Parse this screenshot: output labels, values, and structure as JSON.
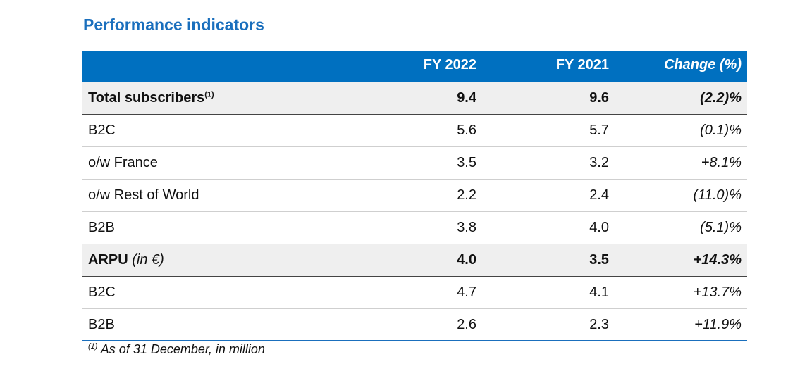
{
  "header": {
    "title": "Performance indicators"
  },
  "table": {
    "columns": [
      "FY 2022",
      "FY 2021",
      "Change (%)"
    ],
    "rows": [
      {
        "label": "Total subscribers",
        "note": "(1)",
        "cells": [
          "9.4",
          "9.6",
          "(2.2)%"
        ],
        "bold": true
      },
      {
        "label": "B2C",
        "cells": [
          "5.6",
          "5.7",
          "(0.1)%"
        ]
      },
      {
        "label": "o/w France",
        "cells": [
          "3.5",
          "3.2",
          "+8.1%"
        ]
      },
      {
        "label": "o/w Rest of World",
        "cells": [
          "2.2",
          "2.4",
          "(11.0)%"
        ]
      },
      {
        "label": "B2B",
        "cells": [
          "3.8",
          "4.0",
          "(5.1)%"
        ]
      },
      {
        "label": "ARPU",
        "unit": "(in €)",
        "cells": [
          "4.0",
          "3.5",
          "+14.3%"
        ],
        "bold": true
      },
      {
        "label": "B2C",
        "cells": [
          "4.7",
          "4.1",
          "+13.7%"
        ]
      },
      {
        "label": "B2B",
        "cells": [
          "2.6",
          "2.3",
          "+11.9%"
        ]
      }
    ]
  },
  "footnote": {
    "marker": "(1)",
    "text": "As of 31 December, in million"
  }
}
